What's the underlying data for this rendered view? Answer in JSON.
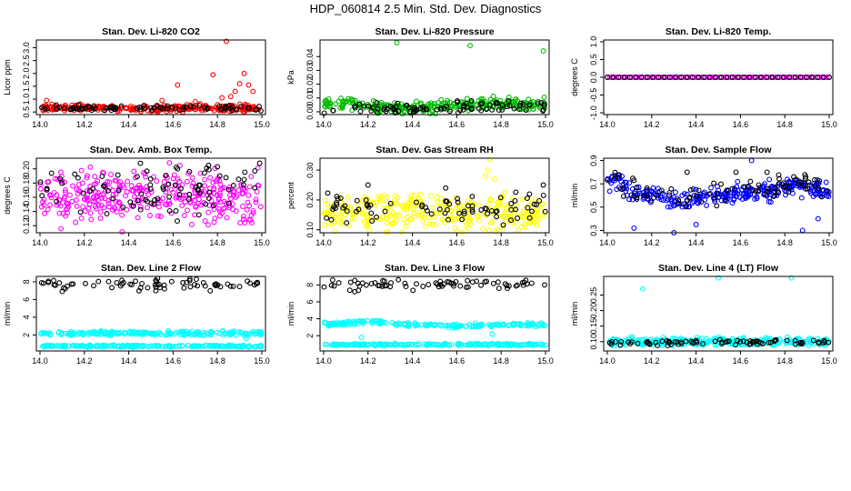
{
  "figure_title": "HDP_060814  2.5 Min. Std. Dev. Diagnostics",
  "chart_data": [
    {
      "type": "scatter",
      "title": "Stan. Dev. Li-820 CO2",
      "ylabel": "Licor ppm",
      "xlim": [
        14.0,
        15.0
      ],
      "ylim": [
        0.4,
        3.3
      ],
      "xticks": [
        "14.0",
        "14.2",
        "14.4",
        "14.6",
        "14.8",
        "15.0"
      ],
      "yticks": [
        "0.5",
        "1.0",
        "1.5",
        "2.0",
        "2.5",
        "3.0"
      ],
      "series": [
        {
          "color": "#ff0000",
          "pattern": "flat",
          "base": 0.65,
          "noise": 0.06,
          "count": 260,
          "extra": [
            [
              14.84,
              3.25
            ],
            [
              14.78,
              1.95
            ],
            [
              14.62,
              1.55
            ],
            [
              14.86,
              1.1
            ],
            [
              14.88,
              1.3
            ],
            [
              14.9,
              1.6
            ],
            [
              14.92,
              2.0
            ],
            [
              14.94,
              1.55
            ],
            [
              14.96,
              1.3
            ],
            [
              14.82,
              1.05
            ],
            [
              14.7,
              0.9
            ],
            [
              14.55,
              0.95
            ],
            [
              14.03,
              0.95
            ]
          ]
        },
        {
          "color": "#000000",
          "pattern": "flat",
          "base": 0.65,
          "noise": 0.05,
          "count": 80,
          "extra": []
        }
      ]
    },
    {
      "type": "scatter",
      "title": "Stan. Dev. Li-820 Pressure",
      "ylabel": "kPa",
      "xlim": [
        14.0,
        15.0
      ],
      "ylim": [
        -0.002,
        0.052
      ],
      "xticks": [
        "14.0",
        "14.2",
        "14.4",
        "14.6",
        "14.8",
        "15.0"
      ],
      "yticks": [
        "0.00",
        "0.01",
        "0.02",
        "0.03",
        "0.04"
      ],
      "series": [
        {
          "color": "#00bb00",
          "pattern": "dip",
          "base": 0.006,
          "noise": 0.002,
          "count": 280,
          "extra": [
            [
              14.33,
              0.05
            ],
            [
              14.66,
              0.048
            ],
            [
              14.99,
              0.044
            ]
          ]
        },
        {
          "color": "#000000",
          "pattern": "dip",
          "base": 0.004,
          "noise": 0.002,
          "count": 90,
          "extra": []
        }
      ]
    },
    {
      "type": "scatter",
      "title": "Stan. Dev. Li-820 Temp.",
      "ylabel": "degrees C",
      "xlim": [
        14.0,
        15.0
      ],
      "ylim": [
        -1.05,
        1.05
      ],
      "xticks": [
        "14.0",
        "14.2",
        "14.4",
        "14.6",
        "14.8",
        "15.0"
      ],
      "yticks": [
        "-1.0",
        "-0.5",
        "0.0",
        "0.5",
        "1.0"
      ],
      "series": [
        {
          "color": "#ff00ff",
          "pattern": "grid",
          "base": 0.0,
          "noise": 0.0,
          "count": 100,
          "extra": []
        },
        {
          "color": "#000000",
          "pattern": "grid",
          "base": 0.0,
          "noise": 0.0,
          "count": 40,
          "extra": []
        }
      ]
    },
    {
      "type": "scatter",
      "title": "Stan. Dev. Amb. Box Temp.",
      "ylabel": "degrees C",
      "xlim": [
        14.0,
        15.0
      ],
      "ylim": [
        0.11,
        0.215
      ],
      "xticks": [
        "14.0",
        "14.2",
        "14.4",
        "14.6",
        "14.8",
        "15.0"
      ],
      "yticks": [
        "0.12",
        "0.14",
        "0.16",
        "0.18",
        "0.20"
      ],
      "series": [
        {
          "color": "#ff00ff",
          "pattern": "flat",
          "base": 0.16,
          "noise": 0.018,
          "count": 340,
          "extra": []
        },
        {
          "color": "#000000",
          "pattern": "flat",
          "base": 0.17,
          "noise": 0.018,
          "count": 80,
          "extra": [
            [
              14.76,
              0.205
            ],
            [
              14.8,
              0.203
            ],
            [
              14.99,
              0.208
            ],
            [
              14.62,
              0.2
            ]
          ]
        }
      ]
    },
    {
      "type": "scatter",
      "title": "Stan. Dev. Gas Stream RH",
      "ylabel": "percent",
      "xlim": [
        14.0,
        15.0
      ],
      "ylim": [
        0.09,
        0.34
      ],
      "xticks": [
        "14.0",
        "14.2",
        "14.4",
        "14.6",
        "14.8",
        "15.0"
      ],
      "yticks": [
        "0.10",
        "0.20",
        "0.30"
      ],
      "series": [
        {
          "color": "#ffff00",
          "pattern": "flat",
          "base": 0.16,
          "noise": 0.03,
          "count": 320,
          "extra": [
            [
              14.75,
              0.335
            ],
            [
              14.74,
              0.3
            ],
            [
              14.73,
              0.28
            ],
            [
              14.77,
              0.27
            ]
          ]
        },
        {
          "color": "#000000",
          "pattern": "flat",
          "base": 0.17,
          "noise": 0.025,
          "count": 80,
          "extra": [
            [
              14.99,
              0.25
            ],
            [
              14.55,
              0.24
            ],
            [
              14.2,
              0.25
            ]
          ]
        }
      ]
    },
    {
      "type": "scatter",
      "title": "Stan. Dev. Sample Flow",
      "ylabel": "ml/min",
      "xlim": [
        14.0,
        15.0
      ],
      "ylim": [
        0.28,
        0.92
      ],
      "xticks": [
        "14.0",
        "14.2",
        "14.4",
        "14.6",
        "14.8",
        "15.0"
      ],
      "yticks": [
        "0.3",
        "0.5",
        "0.7",
        "0.9"
      ],
      "series": [
        {
          "color": "#0000ff",
          "pattern": "sample",
          "base": 0.62,
          "noise": 0.04,
          "count": 300,
          "extra": [
            [
              14.65,
              0.9
            ],
            [
              14.12,
              0.32
            ],
            [
              14.3,
              0.28
            ],
            [
              14.4,
              0.35
            ],
            [
              14.88,
              0.3
            ],
            [
              14.95,
              0.4
            ]
          ]
        },
        {
          "color": "#000000",
          "pattern": "sample",
          "base": 0.64,
          "noise": 0.05,
          "count": 80,
          "extra": [
            [
              14.36,
              0.8
            ],
            [
              14.58,
              0.8
            ],
            [
              14.72,
              0.8
            ]
          ]
        }
      ]
    },
    {
      "type": "scatter",
      "title": "Stan. Dev. Line 2 Flow",
      "ylabel": "ml/min",
      "xlim": [
        14.0,
        15.0
      ],
      "ylim": [
        0.2,
        8.6
      ],
      "xticks": [
        "14.0",
        "14.2",
        "14.4",
        "14.6",
        "14.8",
        "15.0"
      ],
      "yticks": [
        "2",
        "4",
        "6",
        "8"
      ],
      "series": [
        {
          "color": "#00ffff",
          "pattern": "flat",
          "base": 2.2,
          "noise": 0.12,
          "count": 200,
          "extra": [
            [
              14.93,
              1.6
            ]
          ]
        },
        {
          "color": "#00ffff",
          "pattern": "flat",
          "base": 0.75,
          "noise": 0.06,
          "count": 200,
          "extra": []
        },
        {
          "color": "#000000",
          "pattern": "flat",
          "base": 7.7,
          "noise": 0.3,
          "count": 70,
          "extra": [
            [
              14.1,
              6.9
            ]
          ]
        }
      ]
    },
    {
      "type": "scatter",
      "title": "Stan. Dev. Line 3 Flow",
      "ylabel": "ml/min",
      "xlim": [
        14.0,
        15.0
      ],
      "ylim": [
        0.2,
        9.0
      ],
      "xticks": [
        "14.0",
        "14.2",
        "14.4",
        "14.6",
        "14.8",
        "15.0"
      ],
      "yticks": [
        "2",
        "4",
        "6",
        "8"
      ],
      "series": [
        {
          "color": "#00ffff",
          "pattern": "hump",
          "base": 3.3,
          "noise": 0.12,
          "count": 200,
          "extra": [
            [
              14.17,
              1.8
            ],
            [
              14.76,
              2.2
            ]
          ]
        },
        {
          "color": "#00ffff",
          "pattern": "flat",
          "base": 0.95,
          "noise": 0.06,
          "count": 200,
          "extra": []
        },
        {
          "color": "#000000",
          "pattern": "flat",
          "base": 8.0,
          "noise": 0.3,
          "count": 70,
          "extra": [
            [
              14.14,
              7.2
            ]
          ]
        }
      ]
    },
    {
      "type": "scatter",
      "title": "Stan. Dev. Line 4 (LT) Flow",
      "ylabel": "ml/min",
      "xlim": [
        14.0,
        15.0
      ],
      "ylim": [
        0.07,
        0.31
      ],
      "xticks": [
        "14.0",
        "14.2",
        "14.4",
        "14.6",
        "14.8",
        "15.0"
      ],
      "yticks": [
        "0.10",
        "0.15",
        "0.20",
        "0.25"
      ],
      "series": [
        {
          "color": "#00ffff",
          "pattern": "flat",
          "base": 0.1,
          "noise": 0.006,
          "count": 300,
          "extra": [
            [
              14.16,
              0.27
            ],
            [
              14.5,
              0.305
            ],
            [
              14.83,
              0.305
            ]
          ]
        },
        {
          "color": "#000000",
          "pattern": "flat",
          "base": 0.097,
          "noise": 0.005,
          "count": 80,
          "extra": []
        }
      ]
    }
  ]
}
